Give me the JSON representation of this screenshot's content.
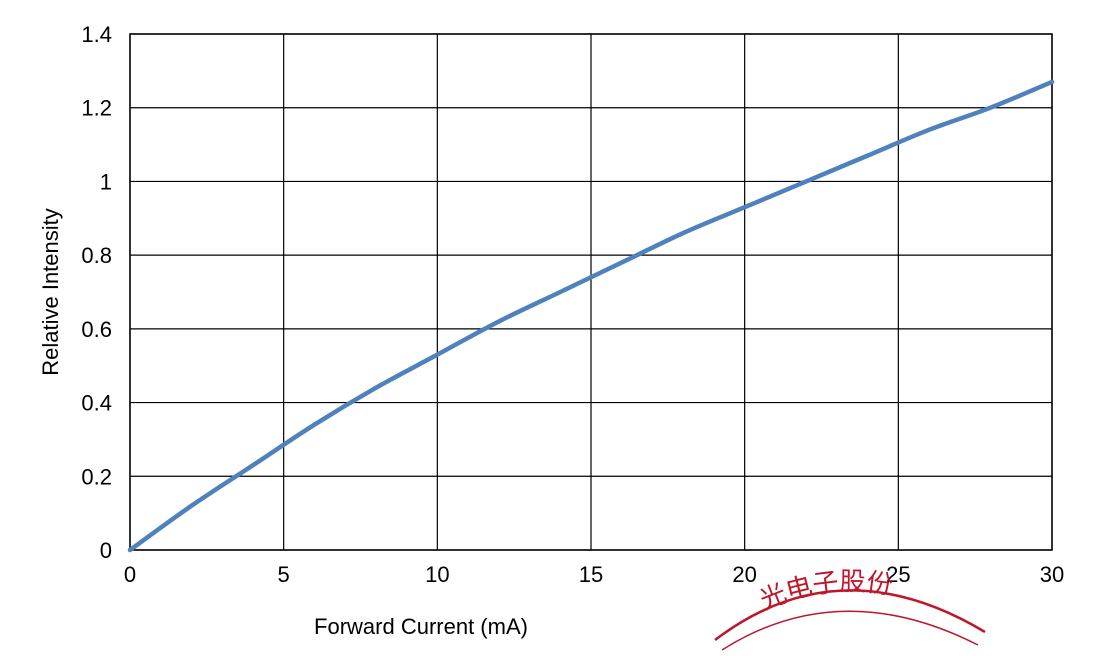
{
  "chart_data": {
    "type": "line",
    "title": "",
    "xlabel": "Forward Current (mA)",
    "ylabel": "Relative Intensity",
    "xlim": [
      0,
      30
    ],
    "ylim": [
      0,
      1.4
    ],
    "x_ticks": [
      "0",
      "5",
      "10",
      "15",
      "20",
      "25",
      "30"
    ],
    "y_ticks": [
      "0",
      "0.2",
      "0.4",
      "0.6",
      "0.8",
      "1",
      "1.2",
      "1.4"
    ],
    "grid": true,
    "legend": "none",
    "series": [
      {
        "color": "#4f81bd",
        "x": [
          0,
          2,
          4,
          6,
          8,
          10,
          12,
          14,
          16,
          18,
          20,
          22,
          24,
          26,
          28,
          30
        ],
        "y": [
          0,
          0.12,
          0.23,
          0.34,
          0.44,
          0.53,
          0.62,
          0.7,
          0.78,
          0.86,
          0.93,
          1.0,
          1.07,
          1.14,
          1.2,
          1.27
        ]
      }
    ]
  },
  "stamp": {
    "text": "光电子股份",
    "color": "#c0162a"
  }
}
